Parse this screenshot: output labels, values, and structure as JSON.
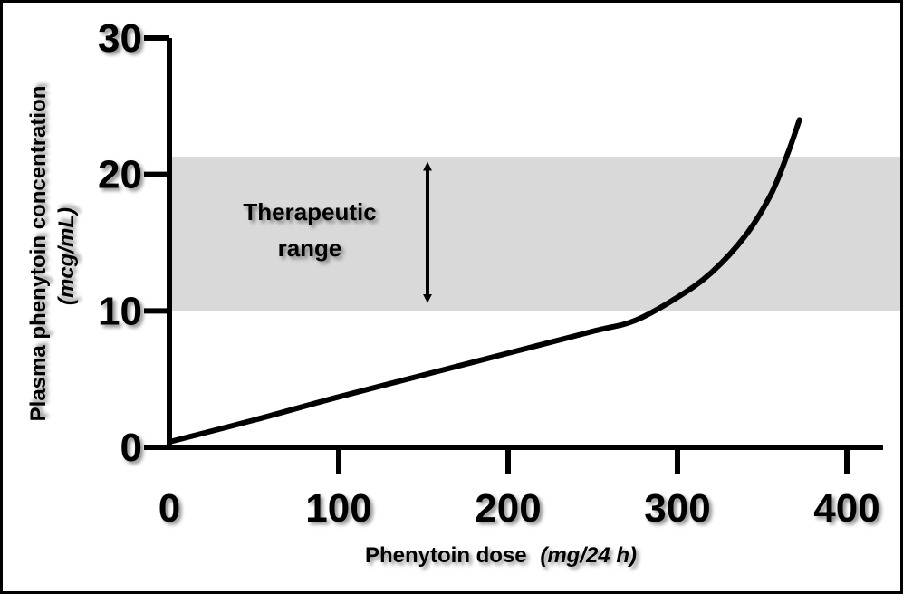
{
  "chart_data": {
    "type": "line",
    "xlabel": "Phenytoin dose",
    "xlabel_unit": "(mg/24 h)",
    "ylabel": "Plasma phenytoin concentration",
    "ylabel_unit": "(mcg/mL)",
    "xlim": [
      0,
      400
    ],
    "ylim": [
      0,
      30
    ],
    "x_ticks": [
      0,
      100,
      200,
      300,
      400
    ],
    "y_ticks": [
      0,
      10,
      20,
      30
    ],
    "x_tick_labels": [
      "0",
      "100",
      "200",
      "300",
      "400"
    ],
    "y_tick_labels": [
      "0",
      "10",
      "20",
      "30"
    ],
    "grid": false,
    "legend": "none",
    "therapeutic_range": {
      "label_line1": "Therapeutic",
      "label_line2": "range",
      "y_min": 10,
      "y_max": 21.3,
      "arrow_y": [
        10.5,
        21.0
      ]
    },
    "series": [
      {
        "x": [
          0,
          50,
          100,
          150,
          200,
          250,
          275,
          300,
          320,
          340,
          355,
          365,
          372
        ],
        "y": [
          0.4,
          2.0,
          3.7,
          5.3,
          6.9,
          8.5,
          9.3,
          11.0,
          12.8,
          15.5,
          18.5,
          21.5,
          24.0
        ]
      }
    ],
    "colors": {
      "line": "#000000",
      "band": "#d9d9d9",
      "axis": "#000000"
    }
  }
}
